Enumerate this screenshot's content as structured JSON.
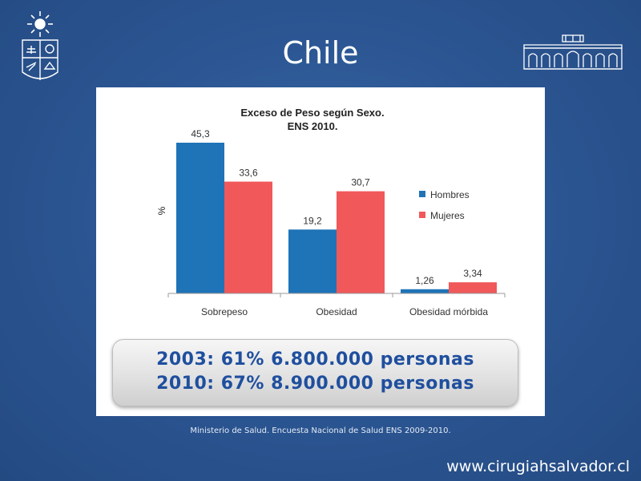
{
  "slide": {
    "title": "Chile",
    "source": "Ministerio de Salud. Encuesta Nacional de Salud ENS 2009-2010.",
    "website": "www.cirugiahsalvador.cl"
  },
  "callout": {
    "line1": "2003: 61% 6.800.000 personas",
    "line2": "2010: 67% 8.900.000 personas"
  },
  "chart_data": {
    "type": "bar",
    "title": "Exceso de Peso según Sexo.",
    "subtitle": "ENS 2010.",
    "ylabel": "%",
    "xlabel": "",
    "categories": [
      "Sobrepeso",
      "Obesidad",
      "Obesidad mórbida"
    ],
    "series": [
      {
        "name": "Hombres",
        "values": [
          45.3,
          19.2,
          1.26
        ],
        "labels": [
          "45,3",
          "19,2",
          "1,26"
        ],
        "color": "#1f73b7"
      },
      {
        "name": "Mujeres",
        "values": [
          33.6,
          30.7,
          3.34
        ],
        "labels": [
          "33,6",
          "30,7",
          "3,34"
        ],
        "color": "#f0585a"
      }
    ],
    "ylim": [
      0,
      45.3
    ],
    "grid": false,
    "legend": "right"
  },
  "colors": {
    "background": "#2c5794",
    "hombres": "#1f73b7",
    "mujeres": "#f0585a",
    "callout_text": "#1f4f9e"
  }
}
